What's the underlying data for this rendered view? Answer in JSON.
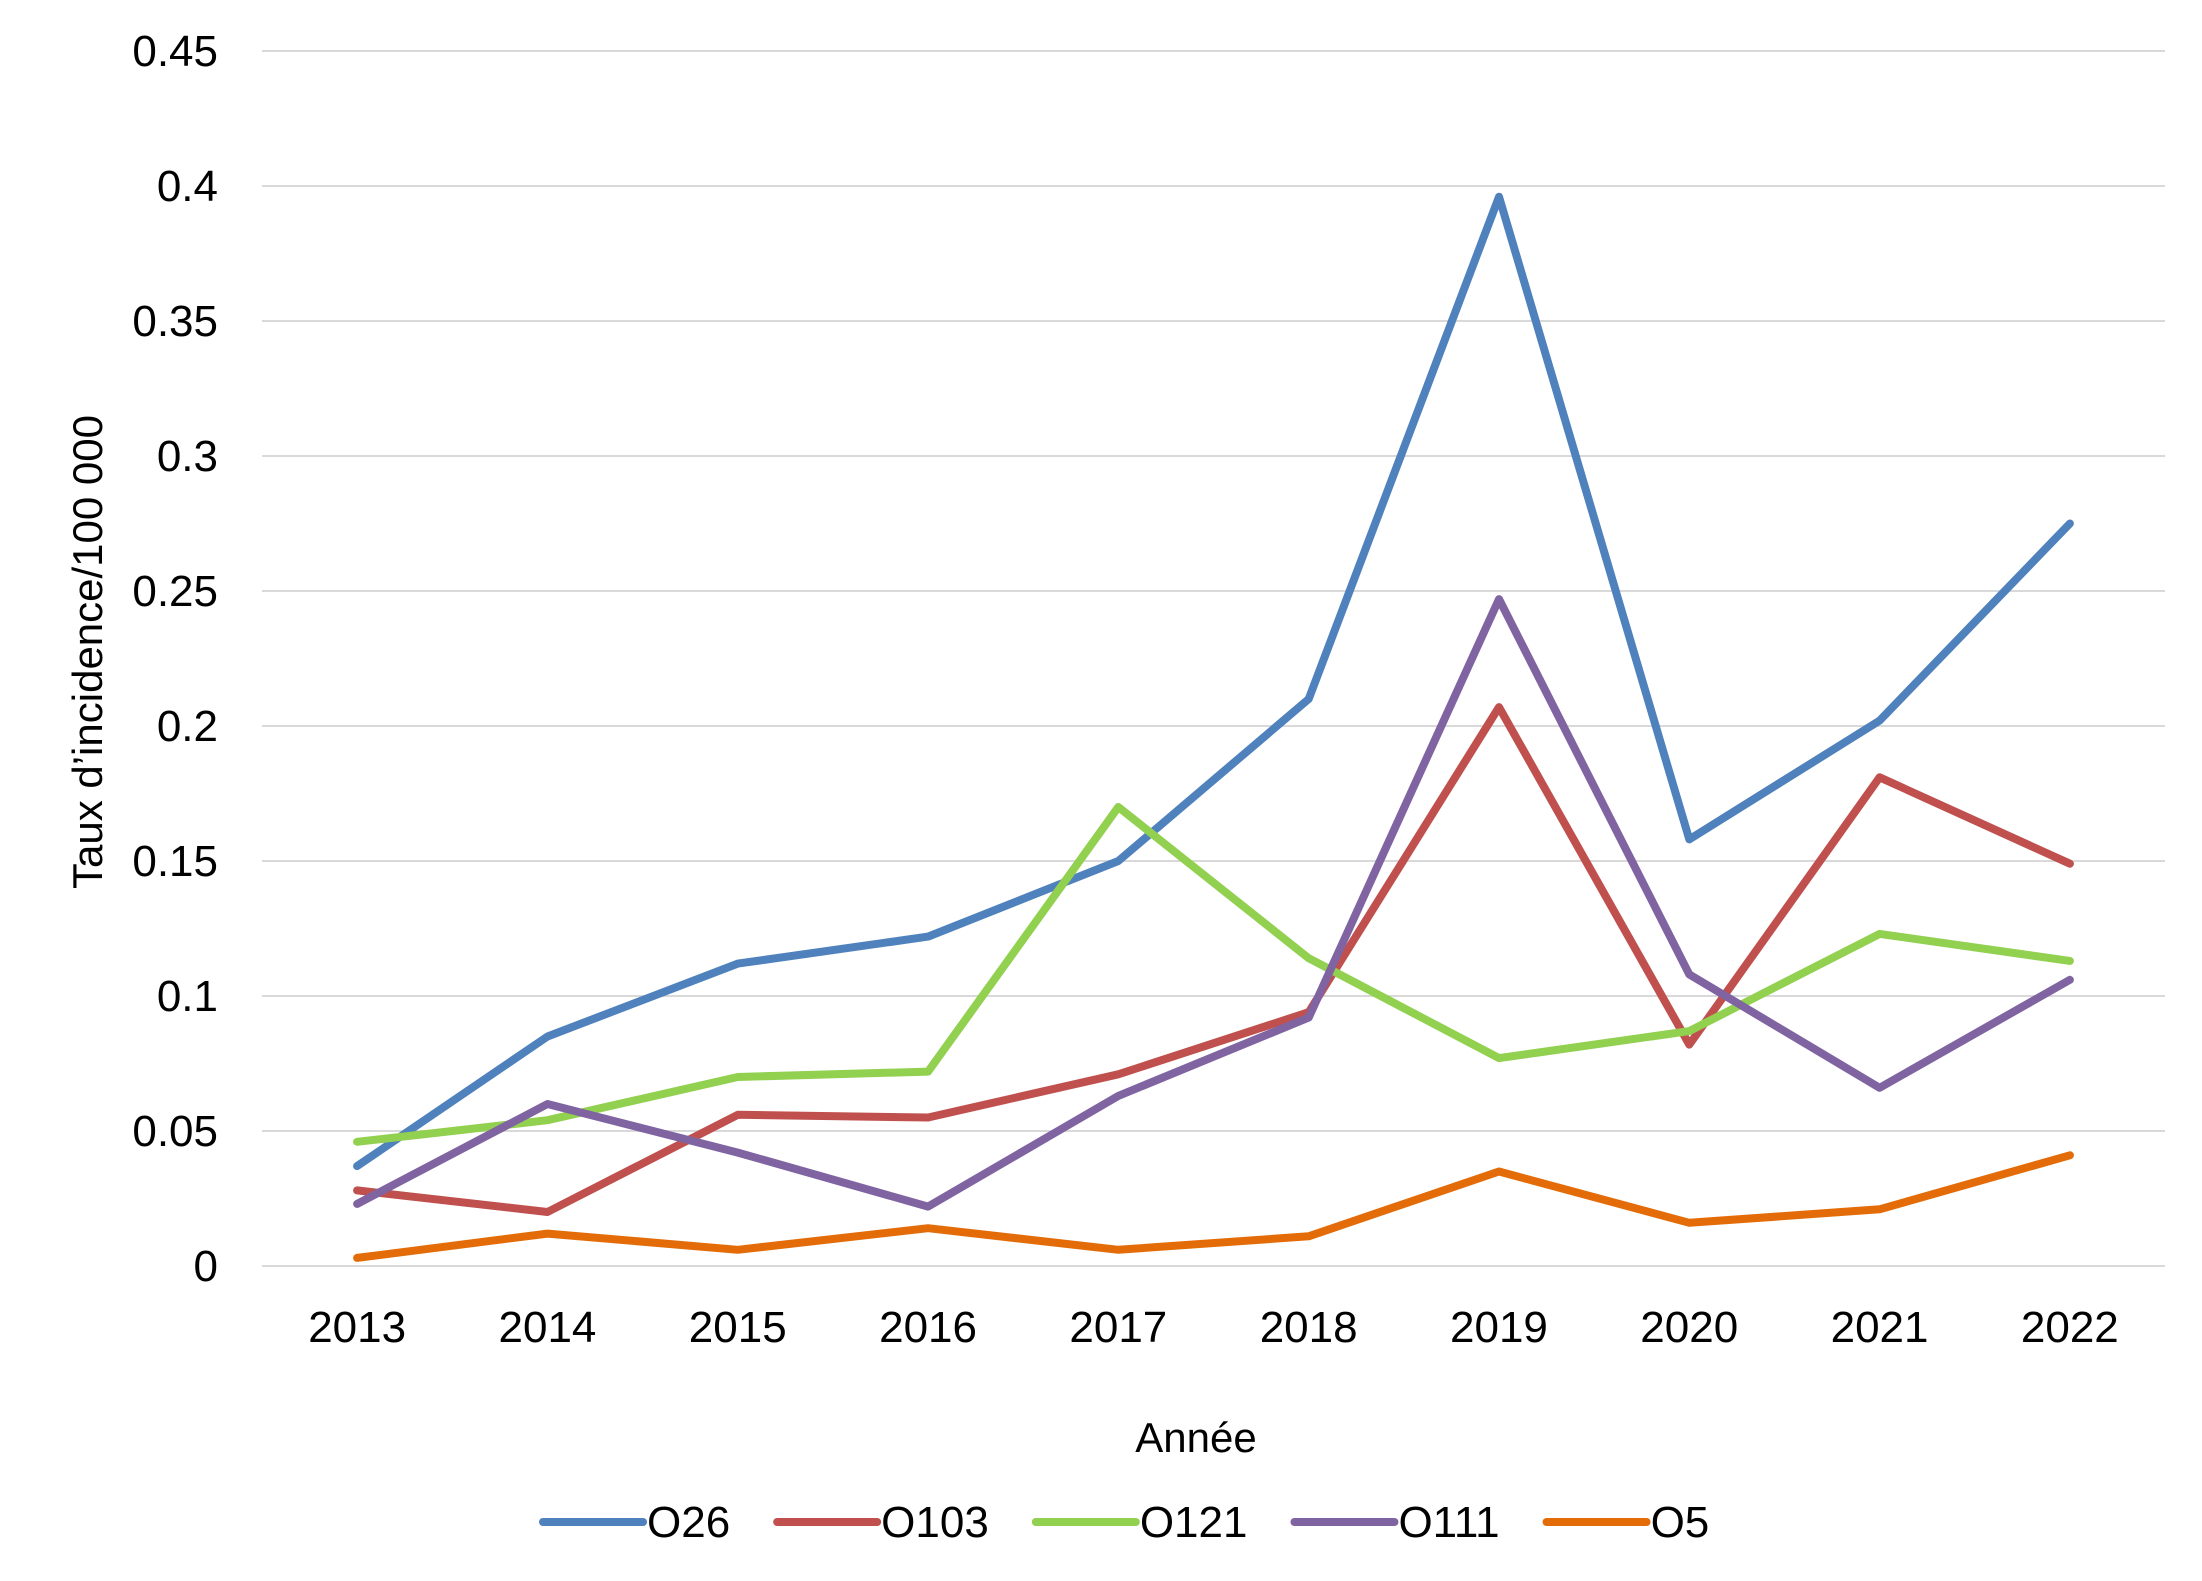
{
  "chart_data": {
    "type": "line",
    "xlabel": "Année",
    "ylabel": "Taux d’incidence/100 000",
    "categories": [
      "2013",
      "2014",
      "2015",
      "2016",
      "2017",
      "2018",
      "2019",
      "2020",
      "2021",
      "2022"
    ],
    "ylim": [
      0,
      0.45
    ],
    "yticks": [
      "0",
      "0.05",
      "0.1",
      "0.15",
      "0.2",
      "0.25",
      "0.3",
      "0.35",
      "0.4",
      "0.45"
    ],
    "grid": true,
    "legend_position": "bottom",
    "series": [
      {
        "name": "O26",
        "color": "#4f81bd",
        "values": [
          0.037,
          0.085,
          0.112,
          0.122,
          0.15,
          0.21,
          0.396,
          0.158,
          0.202,
          0.275
        ]
      },
      {
        "name": "O103",
        "color": "#c0504d",
        "values": [
          0.028,
          0.02,
          0.056,
          0.055,
          0.071,
          0.094,
          0.207,
          0.082,
          0.181,
          0.149
        ]
      },
      {
        "name": "O121",
        "color": "#92d050",
        "values": [
          0.046,
          0.054,
          0.07,
          0.072,
          0.17,
          0.114,
          0.077,
          0.087,
          0.123,
          0.113
        ]
      },
      {
        "name": "O111",
        "color": "#8064a2",
        "values": [
          0.023,
          0.06,
          0.042,
          0.022,
          0.063,
          0.092,
          0.247,
          0.108,
          0.066,
          0.106
        ]
      },
      {
        "name": "O5",
        "color": "#e36c09",
        "values": [
          0.003,
          0.012,
          0.006,
          0.014,
          0.006,
          0.011,
          0.035,
          0.016,
          0.021,
          0.041
        ]
      }
    ]
  }
}
